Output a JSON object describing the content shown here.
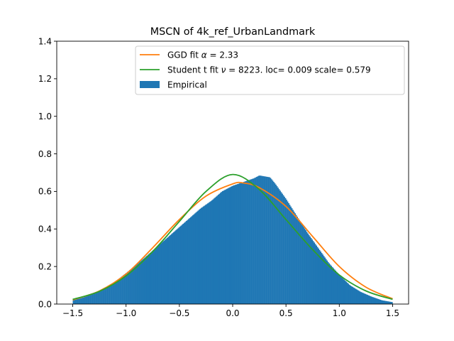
{
  "chart_data": {
    "type": "histogram",
    "title": "MSCN of 4k_ref_UrbanLandmark",
    "xlabel": "",
    "ylabel": "",
    "xlim": [
      -1.65,
      1.65
    ],
    "ylim": [
      0,
      1.4
    ],
    "x_ticks": [
      -1.5,
      -1.0,
      -0.5,
      0.0,
      0.5,
      1.0,
      1.5
    ],
    "x_tick_labels": [
      "−1.5",
      "−1.0",
      "−0.5",
      "0.0",
      "0.5",
      "1.0",
      "1.5"
    ],
    "y_ticks": [
      0.0,
      0.2,
      0.4,
      0.6,
      0.8,
      1.0,
      1.2,
      1.4
    ],
    "y_tick_labels": [
      "0.0",
      "0.2",
      "0.4",
      "0.6",
      "0.8",
      "1.0",
      "1.2",
      "1.4"
    ],
    "grid": false,
    "legend_position": "top-right",
    "legend": [
      {
        "label": "GGD fit α = 2.33",
        "label_parts": [
          "GGD fit ",
          "α",
          " = 2.33"
        ],
        "kind": "line",
        "color": "#ff7f0e"
      },
      {
        "label": "Student t fit ν = 8223. loc= 0.009 scale= 0.579",
        "label_parts": [
          "Student t fit ",
          "ν",
          " = 8223. loc= 0.009 scale= 0.579"
        ],
        "kind": "line",
        "color": "#2ca02c"
      },
      {
        "label": "Empirical",
        "kind": "patch",
        "color": "#1f77b4"
      }
    ],
    "histogram": {
      "name": "Empirical",
      "color": "#1f77b4",
      "x": [
        -1.5,
        -1.4,
        -1.3,
        -1.2,
        -1.1,
        -1.0,
        -0.9,
        -0.8,
        -0.7,
        -0.6,
        -0.5,
        -0.4,
        -0.3,
        -0.2,
        -0.1,
        0.0,
        0.1,
        0.2,
        0.25,
        0.3,
        0.35,
        0.4,
        0.5,
        0.6,
        0.7,
        0.8,
        0.9,
        1.0,
        1.1,
        1.2,
        1.3,
        1.4,
        1.5
      ],
      "density": [
        0.02,
        0.035,
        0.055,
        0.085,
        0.12,
        0.165,
        0.21,
        0.26,
        0.31,
        0.36,
        0.41,
        0.46,
        0.51,
        0.55,
        0.6,
        0.63,
        0.65,
        0.67,
        0.685,
        0.68,
        0.675,
        0.64,
        0.56,
        0.47,
        0.38,
        0.3,
        0.22,
        0.155,
        0.1,
        0.065,
        0.04,
        0.02,
        0.01
      ]
    },
    "series": [
      {
        "name": "GGD fit",
        "type": "line",
        "color": "#ff7f0e",
        "alpha": 2.33,
        "x": [
          -1.5,
          -1.25,
          -1.0,
          -0.75,
          -0.5,
          -0.25,
          0.0,
          0.1,
          0.25,
          0.5,
          0.75,
          1.0,
          1.25,
          1.5
        ],
        "y": [
          0.022,
          0.07,
          0.16,
          0.3,
          0.45,
          0.575,
          0.64,
          0.645,
          0.62,
          0.52,
          0.36,
          0.2,
          0.09,
          0.028
        ]
      },
      {
        "name": "Student t fit",
        "type": "line",
        "color": "#2ca02c",
        "nu": 8223,
        "loc": 0.009,
        "scale": 0.579,
        "x": [
          -1.5,
          -1.25,
          -1.0,
          -0.75,
          -0.5,
          -0.25,
          0.0,
          0.25,
          0.5,
          0.75,
          1.0,
          1.25,
          1.5
        ],
        "y": [
          0.025,
          0.068,
          0.15,
          0.28,
          0.44,
          0.6,
          0.69,
          0.61,
          0.45,
          0.29,
          0.155,
          0.07,
          0.025
        ]
      }
    ]
  }
}
